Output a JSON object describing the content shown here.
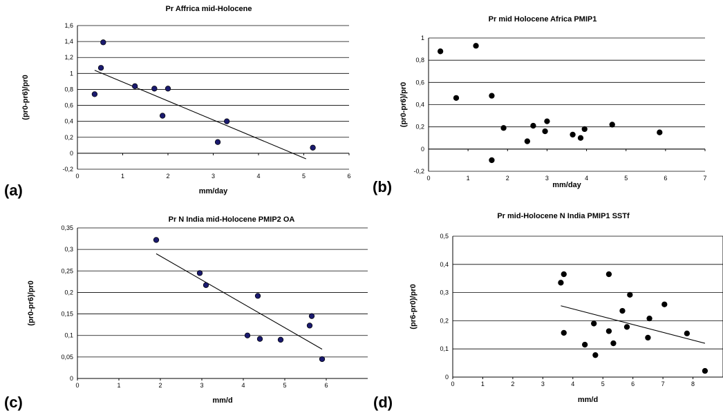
{
  "chart_data": [
    {
      "id": "a",
      "type": "scatter",
      "panel_label": "(a)",
      "title": "Pr Affrica mid-Holocene",
      "xlabel": "mm/day",
      "ylabel": "(pr0-pr6)/pr0",
      "xlim": [
        0,
        6
      ],
      "ylim": [
        -0.2,
        1.6
      ],
      "xticks": [
        "0",
        "1",
        "2",
        "3",
        "4",
        "5",
        "6"
      ],
      "yticks": [
        "-0,2",
        "0",
        "0,2",
        "0,4",
        "0,6",
        "0,8",
        "1",
        "1,2",
        "1,4",
        "1,6"
      ],
      "grid": true,
      "marker_color": "#1a1a6e",
      "points": [
        [
          0.38,
          0.74
        ],
        [
          0.52,
          1.07
        ],
        [
          0.57,
          1.39
        ],
        [
          1.27,
          0.84
        ],
        [
          1.7,
          0.81
        ],
        [
          1.88,
          0.47
        ],
        [
          2.0,
          0.81
        ],
        [
          3.1,
          0.14
        ],
        [
          3.3,
          0.4
        ],
        [
          5.2,
          0.07
        ]
      ],
      "trendline": [
        [
          0.38,
          1.04
        ],
        [
          5.05,
          -0.07
        ]
      ]
    },
    {
      "id": "b",
      "type": "scatter",
      "panel_label": "(b)",
      "title": "Pr mid Holocene Africa PMIP1",
      "xlabel": "mm/day",
      "ylabel": "(pr0-pr6)/pr0",
      "xlim": [
        0,
        7
      ],
      "ylim": [
        -0.2,
        1
      ],
      "xticks": [
        "0",
        "1",
        "2",
        "3",
        "4",
        "5",
        "6",
        "7"
      ],
      "yticks": [
        "-0,2",
        "0",
        "0,2",
        "0,4",
        "0,6",
        "0,8",
        "1"
      ],
      "grid": true,
      "marker_color": "#000000",
      "points": [
        [
          0.3,
          0.88
        ],
        [
          0.7,
          0.46
        ],
        [
          1.2,
          0.93
        ],
        [
          1.6,
          0.48
        ],
        [
          1.6,
          -0.1
        ],
        [
          1.9,
          0.19
        ],
        [
          2.5,
          0.07
        ],
        [
          2.65,
          0.21
        ],
        [
          2.95,
          0.16
        ],
        [
          3.0,
          0.25
        ],
        [
          3.65,
          0.13
        ],
        [
          3.85,
          0.1
        ],
        [
          3.95,
          0.18
        ],
        [
          4.65,
          0.22
        ],
        [
          5.85,
          0.15
        ]
      ],
      "trendline": null
    },
    {
      "id": "c",
      "type": "scatter",
      "panel_label": "(c)",
      "title": "Pr N India mid-Holocene PMIP2 OA",
      "xlabel": "mm/d",
      "ylabel": "(pr0-pr6)/pr0",
      "xlim": [
        0,
        7
      ],
      "ylim": [
        0,
        0.35
      ],
      "xticks": [
        "0",
        "1",
        "2",
        "3",
        "4",
        "5",
        "6"
      ],
      "yticks": [
        "0",
        "0,05",
        "0,1",
        "0,15",
        "0,2",
        "0,25",
        "0,3",
        "0,35"
      ],
      "grid": true,
      "marker_color": "#1a1a6e",
      "points": [
        [
          1.9,
          0.322
        ],
        [
          2.95,
          0.245
        ],
        [
          3.1,
          0.217
        ],
        [
          4.1,
          0.1
        ],
        [
          4.35,
          0.192
        ],
        [
          4.4,
          0.092
        ],
        [
          4.9,
          0.09
        ],
        [
          5.6,
          0.123
        ],
        [
          5.65,
          0.145
        ],
        [
          5.9,
          0.045
        ]
      ],
      "trendline": [
        [
          1.9,
          0.29
        ],
        [
          5.9,
          0.068
        ]
      ]
    },
    {
      "id": "d",
      "type": "scatter",
      "panel_label": "(d)",
      "title": "Pr mid-Holocene N India PMIP1 SSTf",
      "xlabel": "mm/d",
      "ylabel": "(pr6-pr0)/pr0",
      "xlim": [
        0,
        9
      ],
      "ylim": [
        0,
        0.5
      ],
      "xticks": [
        "0",
        "1",
        "2",
        "3",
        "4",
        "5",
        "6",
        "7",
        "8"
      ],
      "yticks": [
        "0",
        "0,1",
        "0,2",
        "0,3",
        "0,4",
        "0,5"
      ],
      "grid": true,
      "marker_color": "#000000",
      "points": [
        [
          3.6,
          0.335
        ],
        [
          3.7,
          0.365
        ],
        [
          3.7,
          0.157
        ],
        [
          4.4,
          0.115
        ],
        [
          4.7,
          0.19
        ],
        [
          4.75,
          0.078
        ],
        [
          5.2,
          0.365
        ],
        [
          5.2,
          0.163
        ],
        [
          5.35,
          0.12
        ],
        [
          5.65,
          0.235
        ],
        [
          5.8,
          0.178
        ],
        [
          5.9,
          0.292
        ],
        [
          6.5,
          0.14
        ],
        [
          6.55,
          0.208
        ],
        [
          7.05,
          0.258
        ],
        [
          7.8,
          0.155
        ],
        [
          8.4,
          0.022
        ]
      ],
      "trendline": [
        [
          3.6,
          0.253
        ],
        [
          8.4,
          0.12
        ]
      ]
    }
  ]
}
